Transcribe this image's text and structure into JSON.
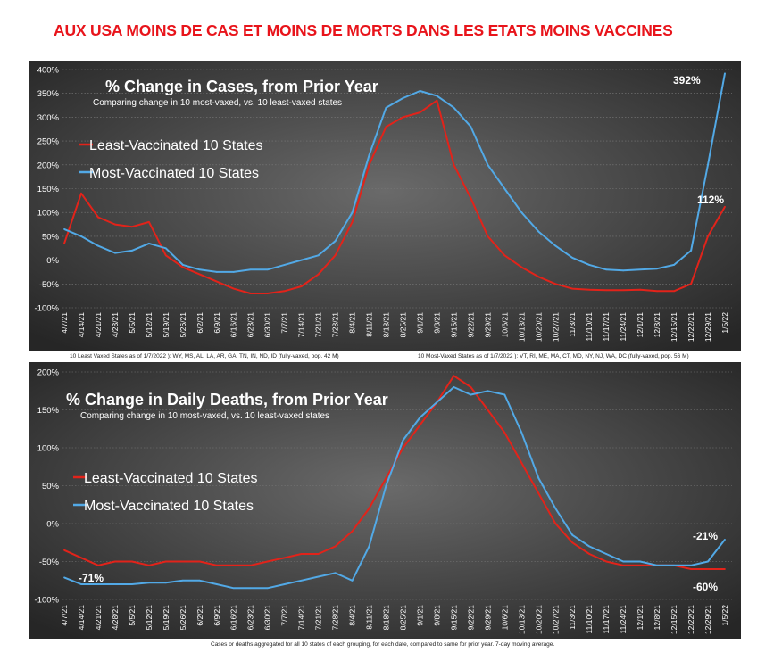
{
  "headline": "AUX USA MOINS DE CAS ET MOINS DE MORTS DANS LES ETATS MOINS VACCINES",
  "colors": {
    "least": "#e2231a",
    "most": "#52a9e6",
    "headline": "#e8141b"
  },
  "notes": {
    "least_states": "10 Least Vaxed States as of 1/7/2022 ): WY, MS, AL, LA, AR, GA, TN, IN, ND, ID (fully-vaxed, pop. 42 M)",
    "most_states": "10 Most-Vaxed  States as of 1/7/2022 ): VT, RI, ME, MA, CT, MD, NY, NJ, WA, DC (fully-vaxed, pop. 56 M)",
    "footer": "Cases or deaths aggregated for all 10 states of each grouping, for each date, compared to same for prior year. 7-day moving average."
  },
  "chart_data": [
    {
      "type": "line",
      "title": "% Change in Cases, from Prior Year",
      "subtitle": "Comparing change in 10 most-vaxed, vs. 10 least-vaxed states",
      "ylim": [
        -100,
        400
      ],
      "y_ticks": [
        "400%",
        "350%",
        "300%",
        "250%",
        "200%",
        "150%",
        "100%",
        "50%",
        "0%",
        "-50%",
        "-100%"
      ],
      "categories": [
        "4/7/21",
        "4/14/21",
        "4/21/21",
        "4/28/21",
        "5/5/21",
        "5/12/21",
        "5/19/21",
        "5/26/21",
        "6/2/21",
        "6/9/21",
        "6/16/21",
        "6/23/21",
        "6/30/21",
        "7/7/21",
        "7/14/21",
        "7/21/21",
        "7/28/21",
        "8/4/21",
        "8/11/21",
        "8/18/21",
        "8/25/21",
        "9/1/21",
        "9/8/21",
        "9/15/21",
        "9/22/21",
        "9/29/21",
        "10/6/21",
        "10/13/21",
        "10/20/21",
        "10/27/21",
        "11/3/21",
        "11/10/21",
        "11/17/21",
        "11/24/21",
        "12/1/21",
        "12/8/21",
        "12/15/21",
        "12/22/21",
        "12/29/21",
        "1/5/22"
      ],
      "series": [
        {
          "name": "Least-Vaccinated 10 States",
          "values": [
            35,
            140,
            90,
            75,
            70,
            80,
            10,
            -15,
            -30,
            -45,
            -60,
            -70,
            -70,
            -65,
            -55,
            -30,
            10,
            80,
            200,
            280,
            300,
            310,
            335,
            200,
            130,
            50,
            10,
            -15,
            -35,
            -50,
            -60,
            -62,
            -63,
            -63,
            -62,
            -65,
            -65,
            -50,
            50,
            112
          ]
        },
        {
          "name": "Most-Vaccinated 10 States",
          "values": [
            65,
            50,
            30,
            15,
            20,
            35,
            25,
            -10,
            -20,
            -25,
            -25,
            -20,
            -20,
            -10,
            0,
            10,
            40,
            100,
            220,
            320,
            340,
            355,
            345,
            320,
            280,
            200,
            150,
            100,
            60,
            30,
            5,
            -10,
            -20,
            -22,
            -20,
            -18,
            -10,
            20,
            200,
            392
          ]
        }
      ],
      "annotations": [
        {
          "text": "392%",
          "series": "Most-Vaccinated 10 States"
        },
        {
          "text": "112%",
          "series": "Least-Vaccinated 10 States"
        }
      ]
    },
    {
      "type": "line",
      "title": "% Change in Daily Deaths, from Prior Year",
      "subtitle": "Comparing change in 10 most-vaxed, vs. 10 least-vaxed states",
      "ylim": [
        -100,
        200
      ],
      "y_ticks": [
        "200%",
        "150%",
        "100%",
        "50%",
        "0%",
        "-50%",
        "-100%"
      ],
      "categories": [
        "4/7/21",
        "4/14/21",
        "4/21/21",
        "4/28/21",
        "5/5/21",
        "5/12/21",
        "5/19/21",
        "5/26/21",
        "6/2/21",
        "6/9/21",
        "6/16/21",
        "6/23/21",
        "6/30/21",
        "7/7/21",
        "7/14/21",
        "7/21/21",
        "7/28/21",
        "8/4/21",
        "8/11/21",
        "8/18/21",
        "8/25/21",
        "9/1/21",
        "9/8/21",
        "9/15/21",
        "9/22/21",
        "9/29/21",
        "10/6/21",
        "10/13/21",
        "10/20/21",
        "10/27/21",
        "11/3/21",
        "11/10/21",
        "11/17/21",
        "11/24/21",
        "12/1/21",
        "12/8/21",
        "12/15/21",
        "12/22/21",
        "12/29/21",
        "1/5/22"
      ],
      "series": [
        {
          "name": "Least-Vaccinated 10 States",
          "values": [
            -35,
            -45,
            -55,
            -50,
            -50,
            -55,
            -50,
            -50,
            -50,
            -55,
            -55,
            -55,
            -50,
            -45,
            -40,
            -40,
            -30,
            -10,
            20,
            60,
            100,
            130,
            160,
            195,
            180,
            150,
            120,
            80,
            40,
            0,
            -25,
            -40,
            -50,
            -55,
            -55,
            -55,
            -55,
            -60,
            -60,
            -60
          ]
        },
        {
          "name": "Most-Vaccinated 10 States",
          "values": [
            -71,
            -80,
            -80,
            -80,
            -80,
            -78,
            -78,
            -75,
            -75,
            -80,
            -85,
            -85,
            -85,
            -80,
            -75,
            -70,
            -65,
            -75,
            -30,
            50,
            110,
            140,
            160,
            180,
            170,
            175,
            170,
            120,
            60,
            20,
            -15,
            -30,
            -40,
            -50,
            -50,
            -55,
            -55,
            -55,
            -50,
            -21
          ]
        }
      ],
      "annotations": [
        {
          "text": "-21%",
          "series": "Most-Vaccinated 10 States"
        },
        {
          "text": "-60%",
          "series": "Least-Vaccinated 10 States"
        },
        {
          "text": "-71%",
          "series": "Most-Vaccinated 10 States"
        }
      ]
    }
  ]
}
